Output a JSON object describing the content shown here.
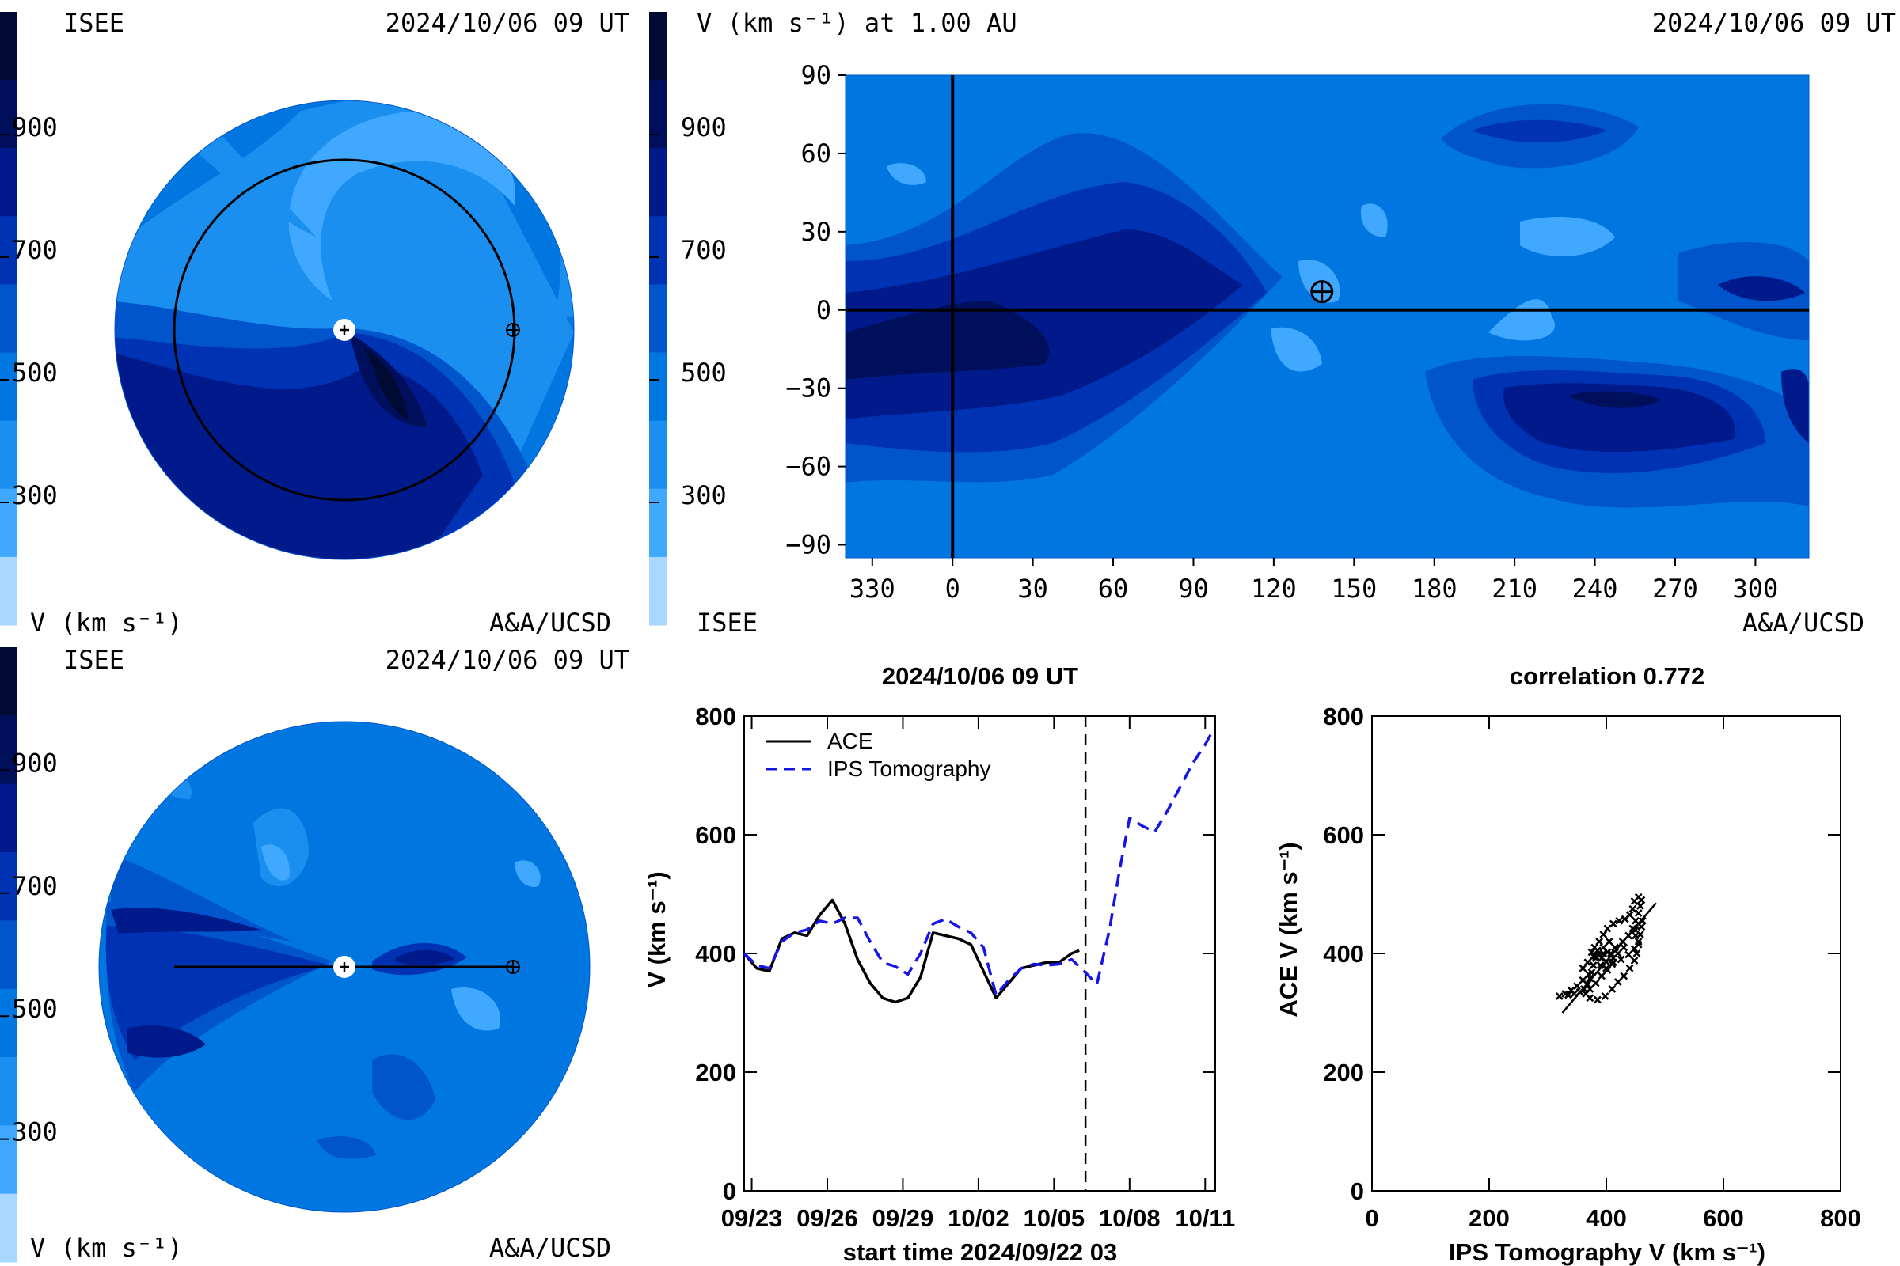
{
  "colorbar": {
    "colors": [
      "#000a33",
      "#000f5c",
      "#001a8c",
      "#0033b3",
      "#0055cc",
      "#0077e0",
      "#1a8ff0",
      "#40a8ff",
      "#a8d8ff"
    ],
    "ticks": [
      {
        "label": "900",
        "value": 900
      },
      {
        "label": "700",
        "value": 700
      },
      {
        "label": "500",
        "value": 500
      },
      {
        "label": "300",
        "value": 300
      }
    ]
  },
  "panel_tl": {
    "top_left": "ISEE",
    "top_right": "2024/10/06 09 UT",
    "bottom_left": "V (km s⁻¹)",
    "bottom_right": "A&A/UCSD"
  },
  "panel_bl": {
    "top_left": "ISEE",
    "top_right": "2024/10/06 09 UT",
    "bottom_left": "V (km s⁻¹)",
    "bottom_right": "A&A/UCSD"
  },
  "panel_tr": {
    "title": "V (km s⁻¹) at 1.00 AU",
    "top_right": "2024/10/06 09 UT",
    "bottom_left": "ISEE",
    "bottom_right": "A&A/UCSD",
    "earth_symbol": "⊕"
  },
  "chart_data": [
    {
      "type": "heatmap",
      "title": "V (km s⁻¹) at 1.00 AU",
      "x_ticks": [
        "330",
        "0",
        "30",
        "60",
        "90",
        "120",
        "150",
        "180",
        "210",
        "240",
        "270",
        "300"
      ],
      "y_ticks": [
        "90",
        "60",
        "30",
        "0",
        "−30",
        "−60",
        "−90"
      ],
      "xlim": [
        -40,
        320
      ],
      "ylim": [
        -95,
        90
      ],
      "earth": {
        "x": 138,
        "y": 7
      }
    },
    {
      "type": "line",
      "title": "2024/10/06 09 UT",
      "xlabel": "start time 2024/09/22 03",
      "ylabel": "V (km s⁻¹)",
      "x_tick_labels": [
        "09/23",
        "09/26",
        "09/29",
        "10/02",
        "10/05",
        "10/08",
        "10/11"
      ],
      "x_tick_values": [
        1,
        4,
        7,
        10,
        13,
        16,
        19
      ],
      "y_ticks": [
        0,
        200,
        400,
        600,
        800
      ],
      "xlim": [
        0.7,
        19.4
      ],
      "ylim": [
        0,
        800
      ],
      "current_time": 14.25,
      "legend_position": "top-left",
      "series": [
        {
          "name": "ACE",
          "color": "#000000",
          "style": "solid",
          "x": [
            0.7,
            1.2,
            1.7,
            2.2,
            2.7,
            3.2,
            3.7,
            4.2,
            4.7,
            5.2,
            5.7,
            6.2,
            6.7,
            7.2,
            7.7,
            8.2,
            8.7,
            9.2,
            9.7,
            10.2,
            10.7,
            11.2,
            11.7,
            12.2,
            12.7,
            13.2,
            13.7,
            14.0
          ],
          "y": [
            400,
            375,
            370,
            425,
            435,
            430,
            465,
            490,
            450,
            390,
            350,
            325,
            318,
            325,
            360,
            435,
            430,
            425,
            415,
            370,
            325,
            350,
            375,
            380,
            385,
            385,
            400,
            405
          ]
        },
        {
          "name": "IPS Tomography",
          "color": "#1515e6",
          "style": "dashed",
          "x": [
            0.7,
            1.2,
            1.7,
            2.2,
            2.7,
            3.2,
            3.7,
            4.2,
            4.7,
            5.2,
            5.7,
            6.2,
            6.7,
            7.2,
            7.7,
            8.2,
            8.7,
            9.2,
            9.7,
            10.2,
            10.7,
            11.2,
            11.7,
            12.2,
            12.7,
            13.2,
            13.7,
            14.2,
            14.7,
            15.2,
            15.6,
            16.0,
            16.5,
            17.0,
            17.5,
            18.0,
            18.5,
            19.0,
            19.3
          ],
          "y": [
            400,
            380,
            375,
            420,
            435,
            440,
            455,
            450,
            460,
            460,
            420,
            385,
            378,
            365,
            400,
            450,
            458,
            445,
            435,
            410,
            330,
            355,
            375,
            382,
            380,
            382,
            390,
            370,
            348,
            440,
            540,
            628,
            615,
            605,
            640,
            680,
            720,
            752,
            775
          ]
        }
      ]
    },
    {
      "type": "scatter",
      "title": "correlation 0.772",
      "xlabel": "IPS Tomography V (km s⁻¹)",
      "ylabel": "ACE V (km s⁻¹)",
      "x_ticks": [
        0,
        200,
        400,
        600,
        800
      ],
      "y_ticks": [
        0,
        200,
        400,
        600,
        800
      ],
      "xlim": [
        0,
        800
      ],
      "ylim": [
        0,
        800
      ],
      "fit_line": [
        [
          325,
          300
        ],
        [
          485,
          485
        ]
      ],
      "points": [
        [
          320,
          328
        ],
        [
          335,
          330
        ],
        [
          345,
          332
        ],
        [
          355,
          335
        ],
        [
          362,
          340
        ],
        [
          368,
          348
        ],
        [
          372,
          358
        ],
        [
          375,
          368
        ],
        [
          378,
          380
        ],
        [
          382,
          392
        ],
        [
          388,
          398
        ],
        [
          395,
          400
        ],
        [
          402,
          402
        ],
        [
          408,
          400
        ],
        [
          412,
          392
        ],
        [
          410,
          382
        ],
        [
          402,
          372
        ],
        [
          392,
          362
        ],
        [
          382,
          350
        ],
        [
          372,
          340
        ],
        [
          365,
          332
        ],
        [
          372,
          325
        ],
        [
          385,
          322
        ],
        [
          398,
          328
        ],
        [
          410,
          340
        ],
        [
          420,
          352
        ],
        [
          430,
          362
        ],
        [
          440,
          375
        ],
        [
          448,
          388
        ],
        [
          452,
          400
        ],
        [
          455,
          415
        ],
        [
          450,
          430
        ],
        [
          445,
          442
        ],
        [
          450,
          455
        ],
        [
          455,
          468
        ],
        [
          458,
          480
        ],
        [
          460,
          490
        ],
        [
          455,
          495
        ],
        [
          448,
          488
        ],
        [
          445,
          475
        ],
        [
          440,
          465
        ],
        [
          432,
          458
        ],
        [
          422,
          455
        ],
        [
          412,
          450
        ],
        [
          402,
          442
        ],
        [
          395,
          432
        ],
        [
          388,
          420
        ],
        [
          380,
          410
        ],
        [
          375,
          402
        ],
        [
          382,
          395
        ],
        [
          392,
          392
        ],
        [
          400,
          386
        ],
        [
          412,
          385
        ],
        [
          425,
          390
        ],
        [
          438,
          398
        ],
        [
          448,
          408
        ],
        [
          455,
          420
        ],
        [
          458,
          432
        ],
        [
          460,
          445
        ],
        [
          462,
          455
        ],
        [
          400,
          375
        ],
        [
          390,
          380
        ],
        [
          370,
          365
        ],
        [
          360,
          355
        ],
        [
          350,
          345
        ],
        [
          340,
          338
        ],
        [
          330,
          332
        ],
        [
          415,
          410
        ],
        [
          428,
          420
        ],
        [
          438,
          430
        ],
        [
          450,
          440
        ],
        [
          420,
          400
        ],
        [
          430,
          410
        ],
        [
          405,
          420
        ],
        [
          395,
          410
        ],
        [
          385,
          405
        ],
        [
          378,
          395
        ],
        [
          368,
          385
        ],
        [
          360,
          375
        ]
      ]
    }
  ]
}
